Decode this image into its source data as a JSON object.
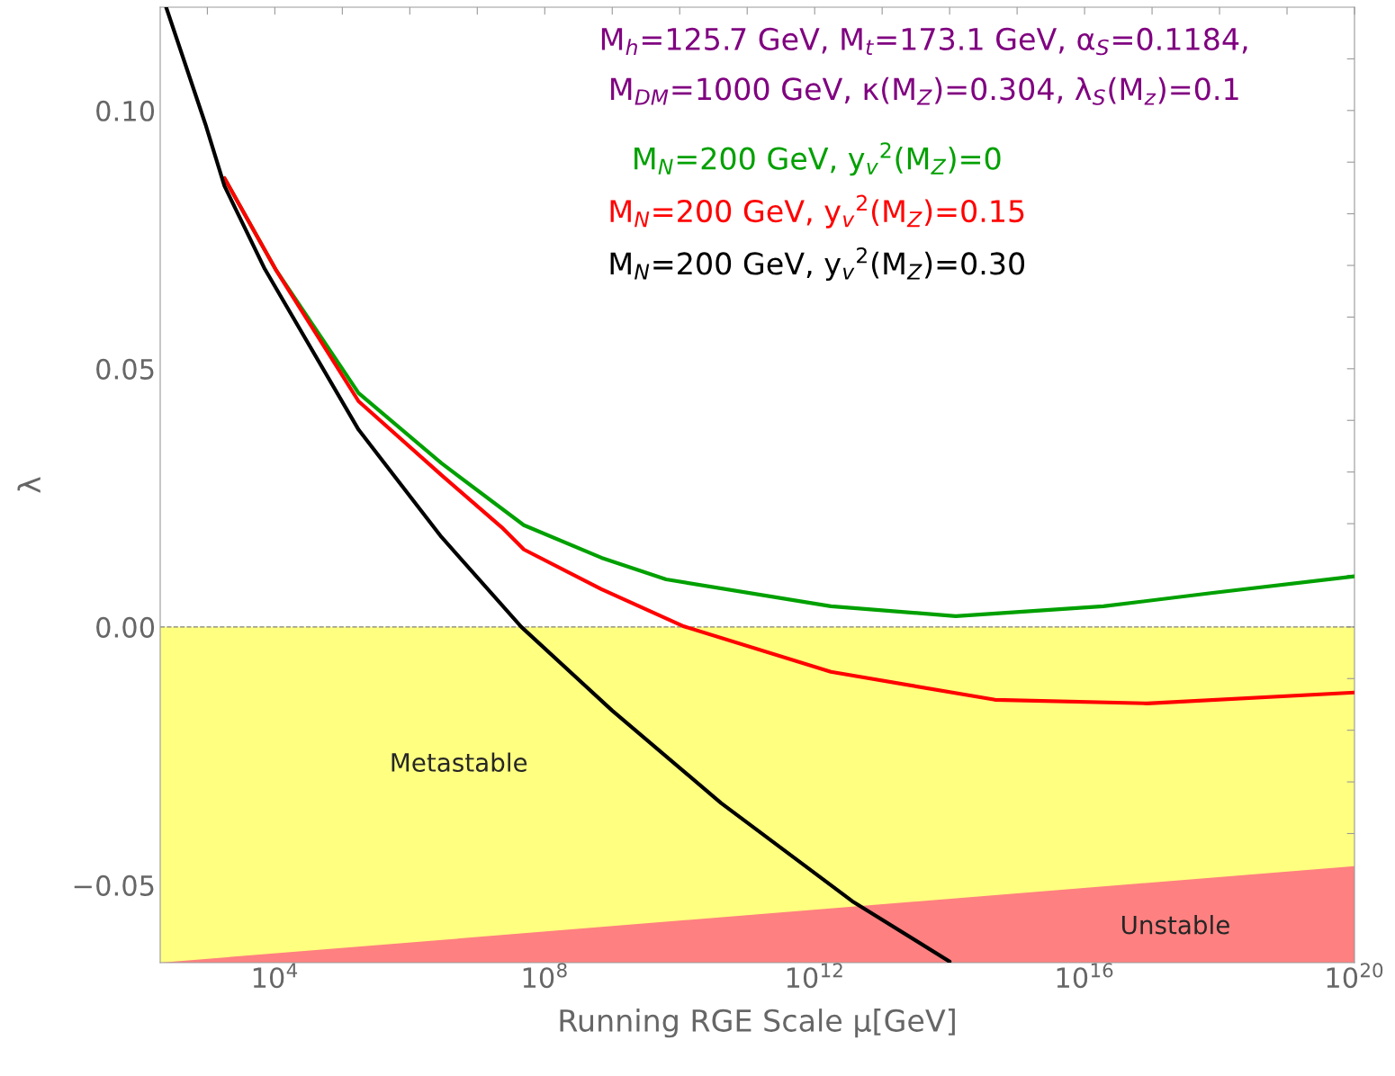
{
  "chart_data": {
    "type": "line",
    "log": "x",
    "xlabel": "Running RGE Scale μ[GeV]",
    "ylabel": "λ",
    "xlim": [
      200,
      1e+20
    ],
    "ylim": [
      -0.065,
      0.12
    ],
    "xticks": [
      {
        "value": 1000,
        "label": null
      },
      {
        "value": 10000,
        "label": "10$^{4}$"
      },
      {
        "value": 100000.0,
        "label": null
      },
      {
        "value": 1000000.0,
        "label": null
      },
      {
        "value": 10000000.0,
        "label": null
      },
      {
        "value": 100000000.0,
        "label": "10$^{8}$"
      },
      {
        "value": 1000000000.0,
        "label": null
      },
      {
        "value": 10000000000.0,
        "label": null
      },
      {
        "value": 100000000000.0,
        "label": null
      },
      {
        "value": 1000000000000.0,
        "label": "10$^{12}$"
      },
      {
        "value": 10000000000000.0,
        "label": null
      },
      {
        "value": 100000000000000.0,
        "label": null
      },
      {
        "value": 1000000000000000.0,
        "label": null
      },
      {
        "value": 1e+16,
        "label": "10$^{16}$"
      },
      {
        "value": 1e+17,
        "label": null
      },
      {
        "value": 1e+18,
        "label": null
      },
      {
        "value": 1e+19,
        "label": null
      },
      {
        "value": 1e+20,
        "label": "10$^{20}$"
      }
    ],
    "yticks": [
      {
        "value": -0.06,
        "label": null
      },
      {
        "value": -0.05,
        "label": "−0.05"
      },
      {
        "value": -0.04,
        "label": null
      },
      {
        "value": -0.03,
        "label": null
      },
      {
        "value": -0.02,
        "label": null
      },
      {
        "value": -0.01,
        "label": null
      },
      {
        "value": 0,
        "label": "0.00"
      },
      {
        "value": 0.01,
        "label": null
      },
      {
        "value": 0.02,
        "label": null
      },
      {
        "value": 0.03,
        "label": null
      },
      {
        "value": 0.04,
        "label": null
      },
      {
        "value": 0.05,
        "label": "0.05"
      },
      {
        "value": 0.06,
        "label": null
      },
      {
        "value": 0.07,
        "label": null
      },
      {
        "value": 0.08,
        "label": null
      },
      {
        "value": 0.09,
        "label": null
      },
      {
        "value": 0.1,
        "label": "0.10"
      },
      {
        "value": 0.11,
        "label": null
      }
    ],
    "bands": [
      {
        "axis": "y",
        "from": -0.065,
        "to": 0,
        "label": "Metastable",
        "color": "#ffff80"
      }
    ],
    "ref_lines": [
      {
        "axis": "y",
        "value": 0,
        "color": "#808080",
        "line_style": "dashed"
      }
    ],
    "annotations": [
      "M$_{h}$=125.7 GeV, M$_{t}$=173.1 GeV, α$_{S}$=0.1184,",
      "M$_{DM}$=1000 GeV, κ(M$_{Z}$)=0.304, λ$_{S}$(M$_{z}$)=0.1"
    ],
    "series": [
      {
        "type": "area",
        "name": "Unstable",
        "color": "#ff8080",
        "x": [
          200,
          1e+20
        ],
        "values": [
          -0.065,
          -0.0463
        ]
      },
      {
        "name": "M$_{N}$=200 GeV, y$_{v}$$^{2}$(M$_{Z}$)=0",
        "color": "#00a000",
        "x": [
          1790,
          10200,
          174000,
          2950000,
          49000000.0,
          690000000.0,
          6300000000.0,
          1740000000000.0,
          123000000000000.0,
          1.9e+16,
          7.9e+17,
          1e+20
        ],
        "values": [
          0.0869,
          0.0693,
          0.0453,
          0.0317,
          0.0197,
          0.0134,
          0.0092,
          0.004,
          0.0021,
          0.004,
          0.0066,
          0.0098
        ]
      },
      {
        "name": "M$_{N}$=200 GeV, y$_{v}$$^{2}$(M$_{Z}$)=0.15",
        "color": "#ff0000",
        "x": [
          1790,
          10200,
          174000,
          2950000,
          23000000.0,
          49000000.0,
          690000000.0,
          11000000000.0,
          1740000000000.0,
          470000000000000.0,
          8.5e+16,
          1e+20
        ],
        "values": [
          0.0869,
          0.0693,
          0.0437,
          0.0294,
          0.0193,
          0.015,
          0.0073,
          0.0002,
          -0.0087,
          -0.0141,
          -0.0148,
          -0.0127
        ]
      },
      {
        "name": "M$_{N}$=200 GeV, y$_{v}$$^{2}$(M$_{Z}$)=0.30",
        "color": "#000000",
        "x": [
          245,
          933,
          1790,
          7100,
          174000,
          2950000,
          45000000.0,
          1000000000.0,
          41000000000.0,
          3600000000000.0,
          100000000000000.0
        ],
        "values": [
          0.12,
          0.0974,
          0.0854,
          0.0693,
          0.0382,
          0.0174,
          0.0,
          -0.0162,
          -0.0341,
          -0.0531,
          -0.0648
        ]
      }
    ]
  }
}
